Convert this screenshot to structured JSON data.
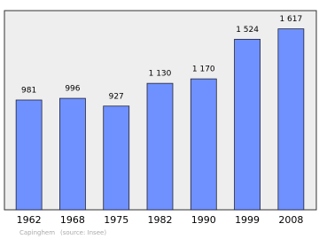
{
  "chart_data": {
    "type": "bar",
    "categories": [
      "1962",
      "1968",
      "1975",
      "1982",
      "1990",
      "1999",
      "2008"
    ],
    "values": [
      981,
      996,
      927,
      1130,
      1170,
      1524,
      1617
    ],
    "value_labels": [
      "981",
      "996",
      "927",
      "1 130",
      "1 170",
      "1 524",
      "1 617"
    ],
    "color": "#6f91ff",
    "ylim": [
      0,
      1780
    ],
    "place": "Capinghem",
    "source": "(source: Insee)"
  }
}
